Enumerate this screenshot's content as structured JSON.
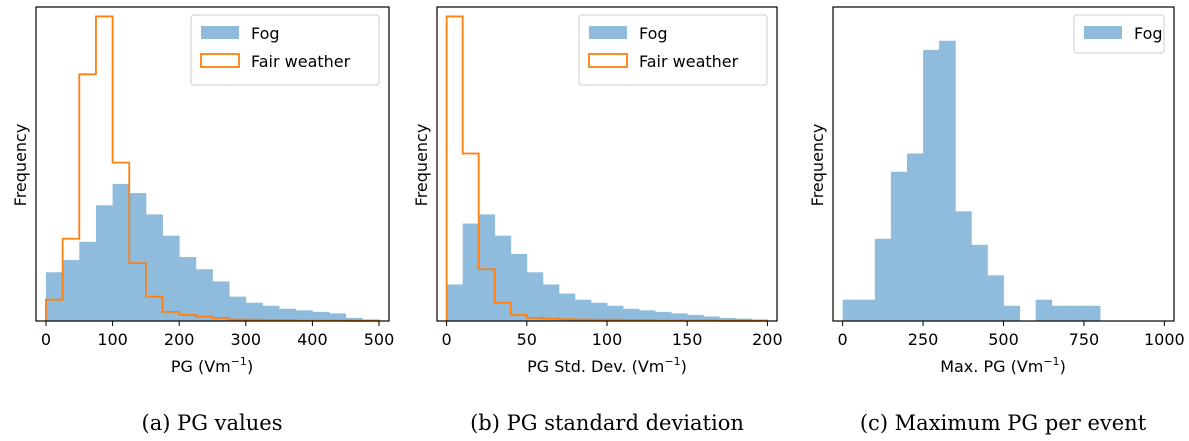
{
  "chart_data": [
    {
      "type": "histogram",
      "caption": "(a) PG values",
      "xlabel": "PG (Vm",
      "xlabel_sup": "−1",
      "xlabel_close": ")",
      "ylabel": "Frequency",
      "xlim": [
        -15,
        515
      ],
      "ylim": [
        0,
        1.0
      ],
      "xticks": [
        0,
        100,
        200,
        300,
        400,
        500
      ],
      "legend_position": "upper right",
      "legend_labels": [
        "Fog",
        "Fair weather"
      ],
      "series": [
        {
          "style": "filled",
          "color": "#8fbcdc",
          "bins": [
            0,
            25,
            50,
            75,
            100,
            125,
            150,
            175,
            200,
            225,
            250,
            275,
            300,
            325,
            350,
            375,
            400,
            425,
            450,
            475,
            500
          ],
          "values": [
            0.16,
            0.2,
            0.26,
            0.38,
            0.45,
            0.42,
            0.35,
            0.28,
            0.21,
            0.17,
            0.13,
            0.08,
            0.06,
            0.05,
            0.04,
            0.035,
            0.03,
            0.025,
            0.01,
            0.005
          ]
        },
        {
          "style": "step",
          "color": "#ff7f0e",
          "bins": [
            0,
            25,
            50,
            75,
            100,
            125,
            150,
            175,
            200,
            225,
            250,
            275,
            300,
            325,
            350,
            375,
            400,
            425,
            450,
            475,
            500
          ],
          "values": [
            0.07,
            0.27,
            0.81,
            1.0,
            0.52,
            0.19,
            0.08,
            0.03,
            0.02,
            0.015,
            0.01,
            0.005,
            0.004,
            0.003,
            0.003,
            0.002,
            0.002,
            0.002,
            0.001,
            0.001
          ]
        }
      ]
    },
    {
      "type": "histogram",
      "caption": "(b) PG standard deviation",
      "xlabel": "PG Std. Dev. (Vm",
      "xlabel_sup": "−1",
      "xlabel_close": ")",
      "ylabel": "Frequency",
      "xlim": [
        -6,
        206
      ],
      "ylim": [
        0,
        1.0
      ],
      "xticks": [
        0,
        50,
        100,
        150,
        200
      ],
      "legend_position": "upper right",
      "legend_labels": [
        "Fog",
        "Fair weather"
      ],
      "series": [
        {
          "style": "filled",
          "color": "#8fbcdc",
          "bins": [
            0,
            10,
            20,
            30,
            40,
            50,
            60,
            70,
            80,
            90,
            100,
            110,
            120,
            130,
            140,
            150,
            160,
            170,
            180,
            190,
            200
          ],
          "values": [
            0.12,
            0.32,
            0.35,
            0.28,
            0.22,
            0.16,
            0.12,
            0.09,
            0.07,
            0.06,
            0.05,
            0.04,
            0.035,
            0.03,
            0.025,
            0.02,
            0.015,
            0.01,
            0.008,
            0.005
          ]
        },
        {
          "style": "step",
          "color": "#ff7f0e",
          "bins": [
            0,
            10,
            20,
            30,
            40,
            50,
            60,
            70,
            80,
            90,
            100,
            110,
            120,
            130,
            140,
            150,
            160,
            170,
            180,
            190,
            200
          ],
          "values": [
            1.0,
            0.55,
            0.17,
            0.06,
            0.02,
            0.01,
            0.008,
            0.006,
            0.005,
            0.004,
            0.004,
            0.003,
            0.003,
            0.002,
            0.002,
            0.002,
            0.002,
            0.001,
            0.001,
            0.001
          ]
        }
      ]
    },
    {
      "type": "histogram",
      "caption": "(c) Maximum PG per event",
      "xlabel": "Max. PG (Vm",
      "xlabel_sup": "−1",
      "xlabel_close": ")",
      "ylabel": "Frequency",
      "xlim": [
        -30,
        1030
      ],
      "ylim": [
        0,
        1.0
      ],
      "xticks": [
        0,
        250,
        500,
        750,
        1000
      ],
      "legend_position": "upper right",
      "legend_labels": [
        "Fog"
      ],
      "series": [
        {
          "style": "filled",
          "color": "#8fbcdc",
          "bins": [
            0,
            50,
            100,
            150,
            200,
            250,
            300,
            350,
            400,
            450,
            500,
            550,
            600,
            650,
            700,
            750,
            800
          ],
          "values": [
            0.07,
            0.07,
            0.27,
            0.49,
            0.55,
            0.89,
            0.92,
            0.36,
            0.25,
            0.15,
            0.05,
            0.0,
            0.07,
            0.05,
            0.05,
            0.05
          ]
        }
      ]
    }
  ]
}
